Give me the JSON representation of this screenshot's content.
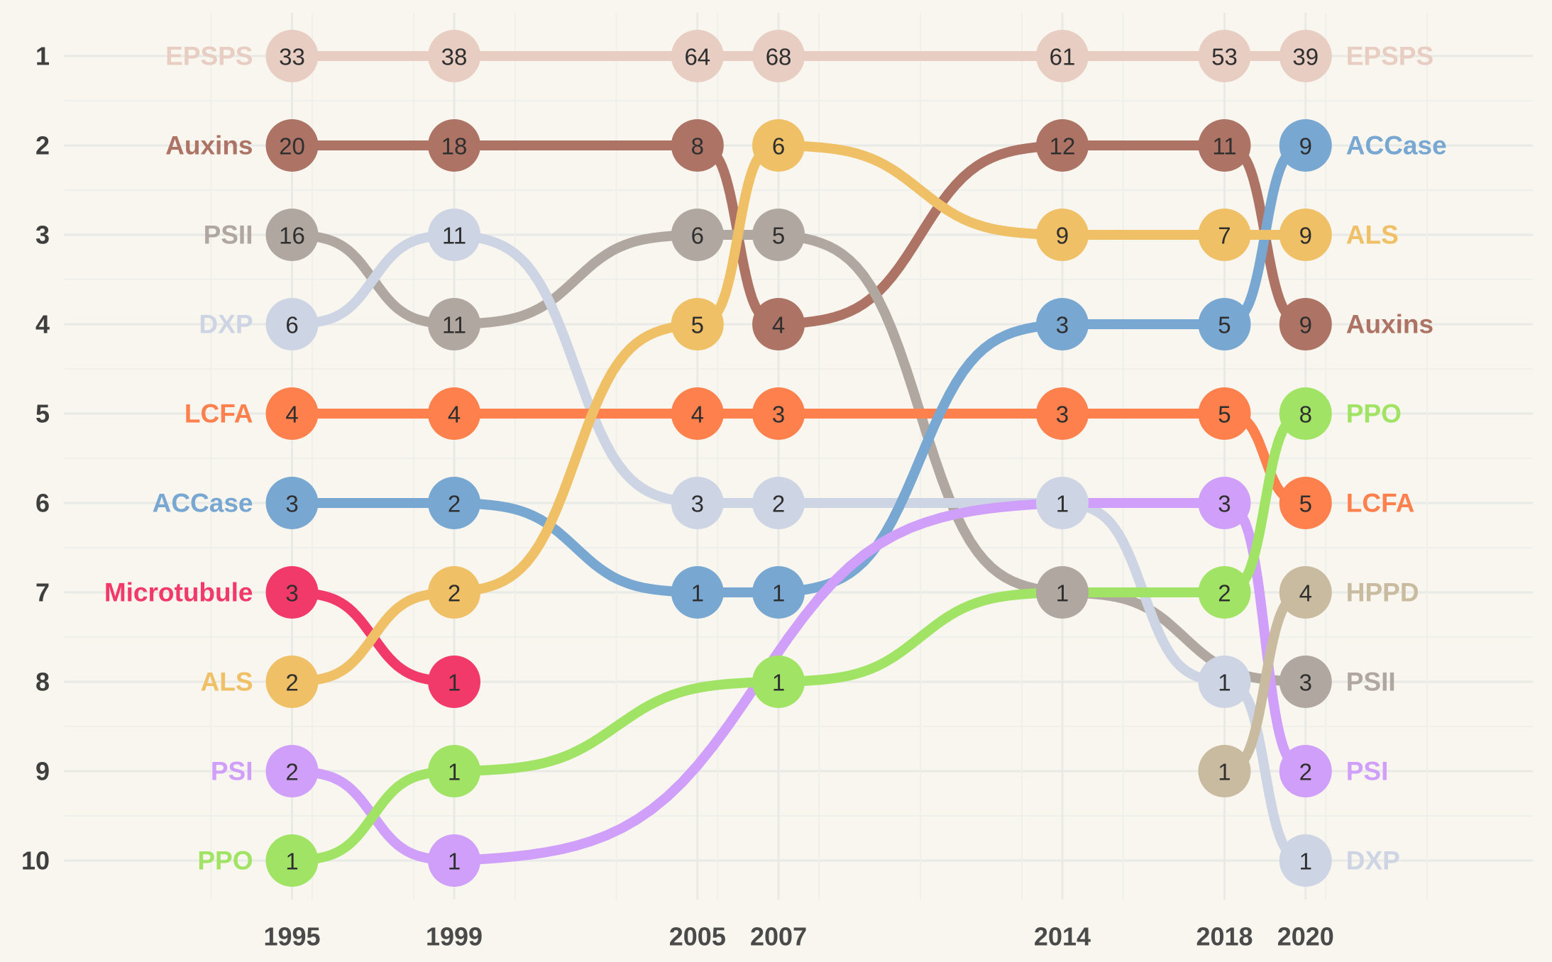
{
  "chart_data": {
    "type": "line",
    "subtype": "bump",
    "title": "",
    "xlabel": "",
    "ylabel": "",
    "x": [
      1995,
      1999,
      2005,
      2007,
      2014,
      2018,
      2020
    ],
    "xlim": [
      1991,
      2025
    ],
    "ranks": [
      1,
      2,
      3,
      4,
      5,
      6,
      7,
      8,
      9,
      10
    ],
    "grid": true,
    "legend": "none",
    "series": [
      {
        "name": "EPSPS",
        "color": "#e8cdc2",
        "points": [
          {
            "x": 1995,
            "rank": 1,
            "value": 33
          },
          {
            "x": 1999,
            "rank": 1,
            "value": 38
          },
          {
            "x": 2005,
            "rank": 1,
            "value": 64
          },
          {
            "x": 2007,
            "rank": 1,
            "value": 68
          },
          {
            "x": 2014,
            "rank": 1,
            "value": 61
          },
          {
            "x": 2018,
            "rank": 1,
            "value": 53
          },
          {
            "x": 2020,
            "rank": 1,
            "value": 39
          }
        ]
      },
      {
        "name": "Auxins",
        "color": "#ad7466",
        "points": [
          {
            "x": 1995,
            "rank": 2,
            "value": 20
          },
          {
            "x": 1999,
            "rank": 2,
            "value": 18
          },
          {
            "x": 2005,
            "rank": 2,
            "value": 8
          },
          {
            "x": 2007,
            "rank": 4,
            "value": 4
          },
          {
            "x": 2014,
            "rank": 2,
            "value": 12
          },
          {
            "x": 2018,
            "rank": 2,
            "value": 11
          },
          {
            "x": 2020,
            "rank": 4,
            "value": 9
          }
        ]
      },
      {
        "name": "PSII",
        "color": "#b0a7a0",
        "points": [
          {
            "x": 1995,
            "rank": 3,
            "value": 16
          },
          {
            "x": 1999,
            "rank": 4,
            "value": 11
          },
          {
            "x": 2005,
            "rank": 3,
            "value": 6
          },
          {
            "x": 2007,
            "rank": 3,
            "value": 5
          },
          {
            "x": 2014,
            "rank": 7,
            "value": 1
          },
          {
            "x": 2020,
            "rank": 8,
            "value": 3
          }
        ]
      },
      {
        "name": "DXP",
        "color": "#cdd4e4",
        "points": [
          {
            "x": 1995,
            "rank": 4,
            "value": 6
          },
          {
            "x": 1999,
            "rank": 3,
            "value": 11
          },
          {
            "x": 2005,
            "rank": 6,
            "value": 3
          },
          {
            "x": 2007,
            "rank": 6,
            "value": 2
          },
          {
            "x": 2014,
            "rank": 6,
            "value": 1
          },
          {
            "x": 2018,
            "rank": 8,
            "value": 1
          },
          {
            "x": 2020,
            "rank": 10,
            "value": 1
          }
        ]
      },
      {
        "name": "LCFA",
        "color": "#fd804d",
        "points": [
          {
            "x": 1995,
            "rank": 5,
            "value": 4
          },
          {
            "x": 1999,
            "rank": 5,
            "value": 4
          },
          {
            "x": 2005,
            "rank": 5,
            "value": 4
          },
          {
            "x": 2007,
            "rank": 5,
            "value": 3
          },
          {
            "x": 2014,
            "rank": 5,
            "value": 3
          },
          {
            "x": 2018,
            "rank": 5,
            "value": 5
          },
          {
            "x": 2020,
            "rank": 6,
            "value": 5
          }
        ]
      },
      {
        "name": "ACCase",
        "color": "#78a8d2",
        "points": [
          {
            "x": 1995,
            "rank": 6,
            "value": 3
          },
          {
            "x": 1999,
            "rank": 6,
            "value": 2
          },
          {
            "x": 2005,
            "rank": 7,
            "value": 1
          },
          {
            "x": 2007,
            "rank": 7,
            "value": 1
          },
          {
            "x": 2014,
            "rank": 4,
            "value": 3
          },
          {
            "x": 2018,
            "rank": 4,
            "value": 5
          },
          {
            "x": 2020,
            "rank": 2,
            "value": 9
          }
        ]
      },
      {
        "name": "Microtubule",
        "color": "#f23a6a",
        "points": [
          {
            "x": 1995,
            "rank": 7,
            "value": 3
          },
          {
            "x": 1999,
            "rank": 8,
            "value": 1
          }
        ]
      },
      {
        "name": "ALS",
        "color": "#efc066",
        "points": [
          {
            "x": 1995,
            "rank": 8,
            "value": 2
          },
          {
            "x": 1999,
            "rank": 7,
            "value": 2
          },
          {
            "x": 2005,
            "rank": 4,
            "value": 5
          },
          {
            "x": 2007,
            "rank": 2,
            "value": 6
          },
          {
            "x": 2014,
            "rank": 3,
            "value": 9
          },
          {
            "x": 2018,
            "rank": 3,
            "value": 7
          },
          {
            "x": 2020,
            "rank": 3,
            "value": 9
          }
        ]
      },
      {
        "name": "PSI",
        "color": "#cf9ffa",
        "points": [
          {
            "x": 1995,
            "rank": 9,
            "value": 2
          },
          {
            "x": 1999,
            "rank": 10,
            "value": 1
          },
          {
            "x": 2014,
            "rank": 6,
            "value": null
          },
          {
            "x": 2018,
            "rank": 6,
            "value": 3
          },
          {
            "x": 2020,
            "rank": 9,
            "value": 2
          }
        ]
      },
      {
        "name": "PPO",
        "color": "#a1e465",
        "points": [
          {
            "x": 1995,
            "rank": 10,
            "value": 1
          },
          {
            "x": 1999,
            "rank": 9,
            "value": 1
          },
          {
            "x": 2007,
            "rank": 8,
            "value": 1
          },
          {
            "x": 2014,
            "rank": 7,
            "value": null
          },
          {
            "x": 2018,
            "rank": 7,
            "value": 2
          },
          {
            "x": 2020,
            "rank": 5,
            "value": 8
          }
        ]
      },
      {
        "name": "HPPD",
        "color": "#c9bba0",
        "points": [
          {
            "x": 2018,
            "rank": 9,
            "value": 1
          },
          {
            "x": 2020,
            "rank": 7,
            "value": 4
          }
        ]
      }
    ]
  }
}
